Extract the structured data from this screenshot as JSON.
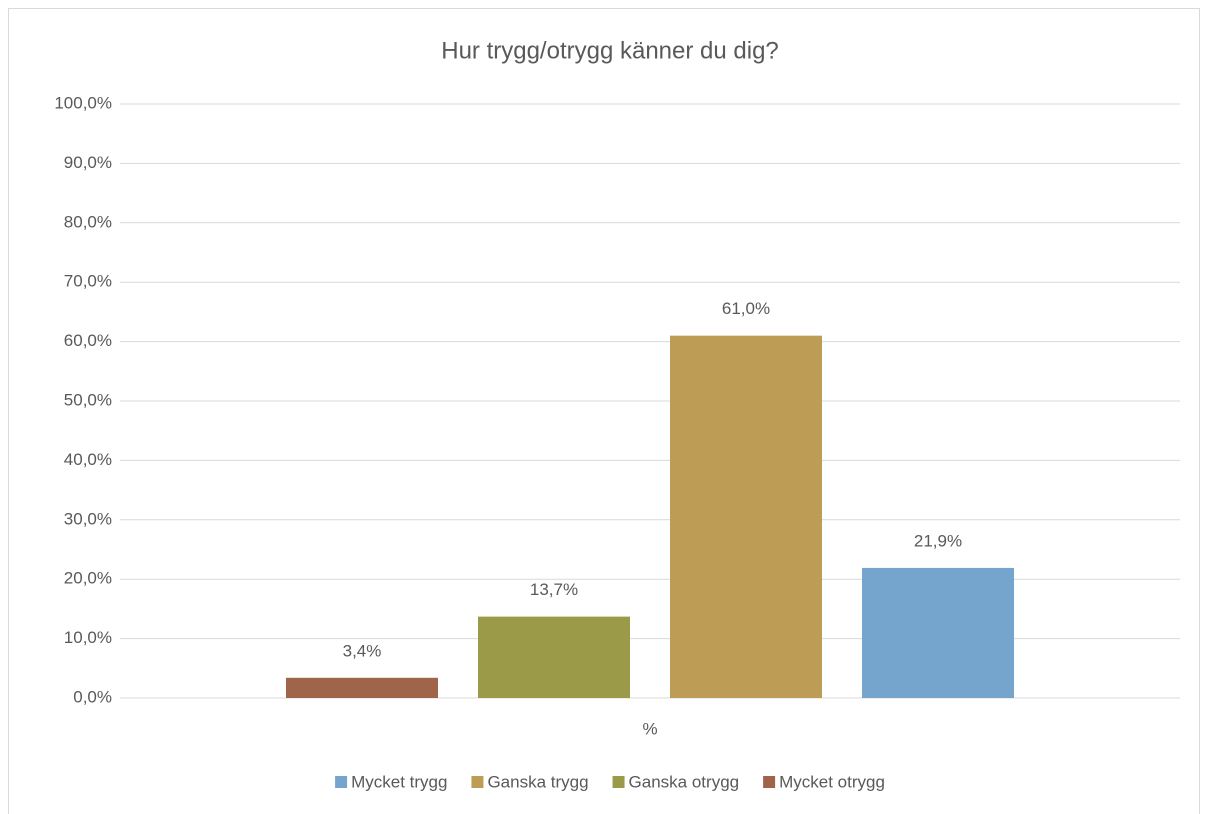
{
  "chart_data": {
    "type": "bar",
    "title": "Hur trygg/otrygg känner du dig?",
    "categories": [
      "%"
    ],
    "series": [
      {
        "name": "Mycket trygg",
        "color": "#75a5cc",
        "values": [
          21.9
        ],
        "value_labels": [
          "21,9%"
        ]
      },
      {
        "name": "Ganska trygg",
        "color": "#bd9c55",
        "values": [
          61.0
        ],
        "value_labels": [
          "61,0%"
        ]
      },
      {
        "name": "Ganska otrygg",
        "color": "#9a9a48",
        "values": [
          13.7
        ],
        "value_labels": [
          "13,7%"
        ]
      },
      {
        "name": "Mycket otrygg",
        "color": "#a0644a",
        "values": [
          3.4
        ],
        "value_labels": [
          "3,4%"
        ]
      }
    ],
    "ylim": [
      0,
      100
    ],
    "yticks": [
      {
        "value": 0,
        "label": "0,0%"
      },
      {
        "value": 10,
        "label": "10,0%"
      },
      {
        "value": 20,
        "label": "20,0%"
      },
      {
        "value": 30,
        "label": "30,0%"
      },
      {
        "value": 40,
        "label": "40,0%"
      },
      {
        "value": 50,
        "label": "50,0%"
      },
      {
        "value": 60,
        "label": "60,0%"
      },
      {
        "value": 70,
        "label": "70,0%"
      },
      {
        "value": 80,
        "label": "80,0%"
      },
      {
        "value": 90,
        "label": "90,0%"
      },
      {
        "value": 100,
        "label": "100,0%"
      }
    ],
    "grid": true,
    "legend": "bottom"
  }
}
